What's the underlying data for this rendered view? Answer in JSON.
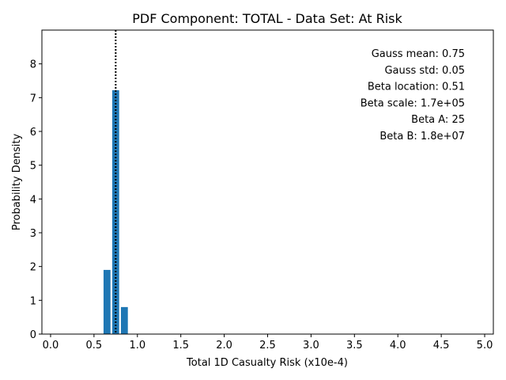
{
  "chart_data": {
    "type": "bar",
    "title": "PDF Component: TOTAL - Data Set: At Risk",
    "xlabel": "Total 1D Casualty Risk (x10e-4)",
    "ylabel": "Probability Density",
    "xlim": [
      -0.1,
      5.1
    ],
    "ylim": [
      0,
      9.0
    ],
    "xticks": [
      "0.0",
      "0.5",
      "1.0",
      "1.5",
      "2.0",
      "2.5",
      "3.0",
      "3.5",
      "4.0",
      "4.5",
      "5.0"
    ],
    "xtick_values": [
      0.0,
      0.5,
      1.0,
      1.5,
      2.0,
      2.5,
      3.0,
      3.5,
      4.0,
      4.5,
      5.0
    ],
    "yticks": [
      "0",
      "1",
      "2",
      "3",
      "4",
      "5",
      "6",
      "7",
      "8"
    ],
    "ytick_values": [
      0,
      1,
      2,
      3,
      4,
      5,
      6,
      7,
      8
    ],
    "bin_width": 0.1,
    "bars": [
      {
        "x": 0.65,
        "value": 1.9
      },
      {
        "x": 0.75,
        "value": 7.22
      },
      {
        "x": 0.85,
        "value": 0.8
      }
    ],
    "vline": {
      "x": 0.75,
      "style": "dotted",
      "color": "#000000"
    },
    "bar_color": "#1f77b4",
    "annotations": [
      "Gauss mean: 0.75",
      "Gauss std: 0.05",
      "Beta location: 0.51",
      "Beta scale: 1.7e+05",
      "Beta A: 25",
      "Beta B: 1.8e+07"
    ],
    "grid": false,
    "legend": "none"
  }
}
